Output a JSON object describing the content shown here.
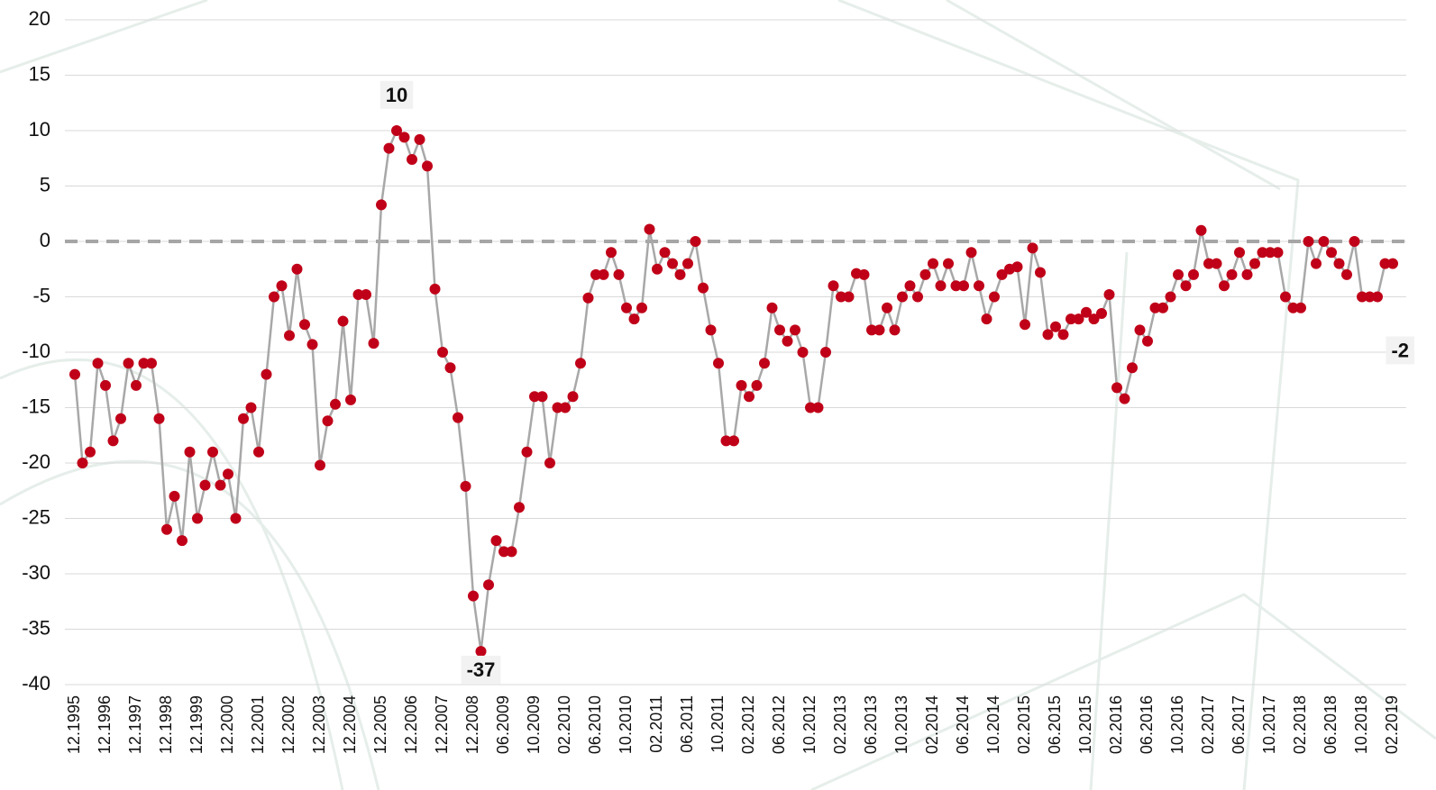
{
  "chart_data": {
    "type": "line",
    "categories": [
      "12.1995",
      null,
      null,
      null,
      "12.1996",
      null,
      null,
      null,
      "12.1997",
      null,
      null,
      null,
      "12.1998",
      null,
      null,
      null,
      "12.1999",
      null,
      null,
      null,
      "12.2000",
      null,
      null,
      null,
      "12.2001",
      null,
      null,
      null,
      "12.2002",
      null,
      null,
      null,
      "12.2003",
      null,
      null,
      null,
      "12.2004",
      null,
      null,
      null,
      "12.2005",
      null,
      null,
      null,
      "12.2006",
      null,
      null,
      null,
      "12.2007",
      null,
      null,
      null,
      "12.2008",
      null,
      null,
      null,
      "06.2009",
      null,
      null,
      null,
      "10.2009",
      null,
      null,
      null,
      "02.2010",
      null,
      null,
      null,
      "06.2010",
      null,
      null,
      null,
      "10.2010",
      null,
      null,
      null,
      "02.2011",
      null,
      null,
      null,
      "06.2011",
      null,
      null,
      null,
      "10.2011",
      null,
      null,
      null,
      "02.2012",
      null,
      null,
      null,
      "06.2012",
      null,
      null,
      null,
      "10.2012",
      null,
      null,
      null,
      "02.2013",
      null,
      null,
      null,
      "06.2013",
      null,
      null,
      null,
      "10.2013",
      null,
      null,
      null,
      "02.2014",
      null,
      null,
      null,
      "06.2014",
      null,
      null,
      null,
      "10.2014",
      null,
      null,
      null,
      "02.2015",
      null,
      null,
      null,
      "06.2015",
      null,
      null,
      null,
      "10.2015",
      null,
      null,
      null,
      "02.2016",
      null,
      null,
      null,
      "06.2016",
      null,
      null,
      null,
      "10.2016",
      null,
      null,
      null,
      "02.2017",
      null,
      null,
      null,
      "06.2017",
      null,
      null,
      null,
      "10.2017",
      null,
      null,
      null,
      "02.2018",
      null,
      null,
      null,
      "06.2018",
      null,
      null,
      null,
      "10.2018",
      null,
      null,
      null,
      "02.2019"
    ],
    "series": [
      {
        "color": "#c00018",
        "line_color": "#a8a8a8",
        "values": [
          -12,
          -20,
          -19,
          -11,
          -13,
          -18,
          -16,
          -11,
          -13,
          -11,
          -11,
          -16,
          -26,
          -23,
          -27,
          -19,
          -25,
          -22,
          -19,
          -22,
          -21,
          -25,
          -16,
          -15,
          -19,
          -12,
          -5,
          -4,
          -8.5,
          -2.5,
          -7.5,
          -9.3,
          -20.2,
          -16.2,
          -14.7,
          -7.2,
          -14.3,
          -4.8,
          -4.8,
          -9.2,
          3.3,
          8.4,
          10,
          9.4,
          7.4,
          9.2,
          6.8,
          -4.3,
          -10,
          -11.4,
          -15.9,
          -22.1,
          -32,
          -37,
          -31,
          -27,
          -28,
          -28,
          -24,
          -19,
          -14,
          -14,
          -20,
          -15,
          -15,
          -14,
          -11,
          -5.1,
          -3,
          -3,
          -1,
          -3,
          -6,
          -7,
          -6,
          1.1,
          -2.5,
          -1,
          -2,
          -3,
          -2,
          0,
          -4.2,
          -8,
          -11,
          -18,
          -18,
          -13,
          -14,
          -13,
          -11,
          -6,
          -8,
          -9,
          -8,
          -10,
          -15,
          -15,
          -10,
          -4,
          -5,
          -5,
          -2.9,
          -3,
          -8,
          -8,
          -6,
          -8,
          -5,
          -4,
          -5,
          -3,
          -2,
          -4,
          -2,
          -4,
          -4,
          -1,
          -4,
          -7,
          -5,
          -3,
          -2.5,
          -2.3,
          -7.5,
          -0.6,
          -2.8,
          -8.4,
          -7.7,
          -8.4,
          -7,
          -7,
          -6.4,
          -7,
          -6.5,
          -4.8,
          -13.2,
          -14.2,
          -11.4,
          -8,
          -9,
          -6,
          -6,
          -5,
          -3,
          -4,
          -3,
          1,
          -2,
          -2,
          -4,
          -3,
          -1,
          -3,
          -2,
          -1,
          -1,
          -1,
          -5,
          -6,
          -6,
          0,
          -2,
          0,
          -1,
          -2,
          -3,
          0,
          -5,
          -5,
          -5,
          -2,
          -2
        ]
      }
    ],
    "annotations": [
      {
        "text": "10",
        "index": 42
      },
      {
        "text": "-37",
        "index": 53
      },
      {
        "text": "-2",
        "index": 172
      }
    ],
    "ylim": [
      -40,
      20
    ],
    "yticks": [
      -40,
      -35,
      -30,
      -25,
      -20,
      -15,
      -10,
      -5,
      0,
      5,
      10,
      15,
      20
    ],
    "grid": true,
    "zero_line": true
  }
}
